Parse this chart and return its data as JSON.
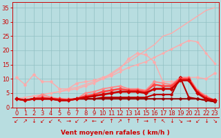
{
  "xlabel": "Vent moyen/en rafales ( km/h )",
  "x": [
    0,
    1,
    2,
    3,
    4,
    5,
    6,
    7,
    8,
    9,
    10,
    11,
    12,
    13,
    14,
    15,
    16,
    17,
    18,
    19,
    20,
    21,
    22,
    23
  ],
  "bg_color": "#b8dde0",
  "grid_color": "#90bfc2",
  "series": [
    {
      "y": [
        3.0,
        3.5,
        4.0,
        4.5,
        5.0,
        5.5,
        6.5,
        7.0,
        8.0,
        9.0,
        10.0,
        12.0,
        14.0,
        16.0,
        18.0,
        20.0,
        22.0,
        25.0,
        26.0,
        28.0,
        30.0,
        32.0,
        34.0,
        35.0
      ],
      "color": "#ffaaaa",
      "lw": 1.0,
      "marker": null,
      "ms": 0,
      "zorder": 2
    },
    {
      "y": [
        3.0,
        3.5,
        4.0,
        4.5,
        5.0,
        5.5,
        6.0,
        6.5,
        7.5,
        8.5,
        10.0,
        11.0,
        12.5,
        14.0,
        15.0,
        16.0,
        17.5,
        19.0,
        20.5,
        22.0,
        23.5,
        23.0,
        19.0,
        15.5
      ],
      "color": "#ffaaaa",
      "lw": 1.0,
      "marker": "D",
      "ms": 2.0,
      "zorder": 2
    },
    {
      "y": [
        10.5,
        8.0,
        11.5,
        9.0,
        9.0,
        6.5,
        6.5,
        8.5,
        9.0,
        9.5,
        10.5,
        11.5,
        13.5,
        17.0,
        19.0,
        18.5,
        16.0,
        9.0,
        9.0,
        9.5,
        10.5,
        10.5,
        10.0,
        12.0
      ],
      "color": "#ffaaaa",
      "lw": 1.0,
      "marker": "D",
      "ms": 2.5,
      "zorder": 2
    },
    {
      "y": [
        3.0,
        2.5,
        3.0,
        4.5,
        3.5,
        3.0,
        3.0,
        3.0,
        5.0,
        5.5,
        6.5,
        7.0,
        7.5,
        6.5,
        6.5,
        6.0,
        9.0,
        8.5,
        8.0,
        10.5,
        10.5,
        6.0,
        4.0,
        2.5
      ],
      "color": "#ff8888",
      "lw": 1.3,
      "marker": "D",
      "ms": 2.5,
      "zorder": 3
    },
    {
      "y": [
        3.0,
        2.5,
        3.0,
        3.5,
        3.0,
        3.0,
        2.5,
        3.0,
        4.0,
        4.5,
        5.5,
        6.0,
        6.5,
        6.0,
        6.0,
        5.5,
        8.0,
        7.5,
        7.5,
        10.0,
        10.0,
        5.5,
        3.5,
        2.5
      ],
      "color": "#ff4444",
      "lw": 1.8,
      "marker": "D",
      "ms": 3.0,
      "zorder": 4
    },
    {
      "y": [
        3.0,
        2.5,
        3.0,
        3.0,
        3.0,
        2.5,
        2.5,
        3.0,
        3.5,
        4.0,
        4.5,
        5.0,
        5.5,
        5.5,
        5.5,
        5.0,
        6.5,
        6.5,
        6.5,
        9.5,
        9.5,
        5.0,
        3.0,
        2.5
      ],
      "color": "#cc0000",
      "lw": 2.0,
      "marker": "D",
      "ms": 3.0,
      "zorder": 5
    },
    {
      "y": [
        3.0,
        2.5,
        3.0,
        3.0,
        3.0,
        2.5,
        2.5,
        3.0,
        3.0,
        3.0,
        3.5,
        3.5,
        3.5,
        3.5,
        3.5,
        3.5,
        4.5,
        4.5,
        4.5,
        10.5,
        3.5,
        3.0,
        2.5,
        2.0
      ],
      "color": "#bb0000",
      "lw": 1.5,
      "marker": "D",
      "ms": 2.5,
      "zorder": 3
    },
    {
      "y": [
        3.0,
        2.5,
        3.0,
        3.0,
        3.0,
        2.5,
        2.5,
        3.0,
        3.0,
        3.0,
        3.0,
        3.0,
        3.0,
        3.0,
        3.0,
        3.0,
        3.0,
        3.0,
        3.0,
        3.0,
        3.0,
        3.0,
        2.5,
        2.0
      ],
      "color": "#990000",
      "lw": 1.5,
      "marker": "D",
      "ms": 2.5,
      "zorder": 3
    }
  ],
  "ylim": [
    0,
    37
  ],
  "yticks": [
    0,
    5,
    10,
    15,
    20,
    25,
    30,
    35
  ],
  "xlim": [
    -0.5,
    23.5
  ],
  "wind_arrows": [
    "↙",
    "↗",
    "↓",
    "↙",
    "↙",
    "↖",
    "→",
    "↙",
    "↗",
    "←",
    "↙",
    "↑",
    "↗",
    "↑",
    "↑",
    "→",
    "↑",
    "↖",
    "↓",
    "↘",
    "→",
    "↙",
    "↓",
    "↘"
  ],
  "tick_color": "#cc0000",
  "axis_color": "#cc0000",
  "label_color": "#cc0000",
  "font_size": 6.0
}
